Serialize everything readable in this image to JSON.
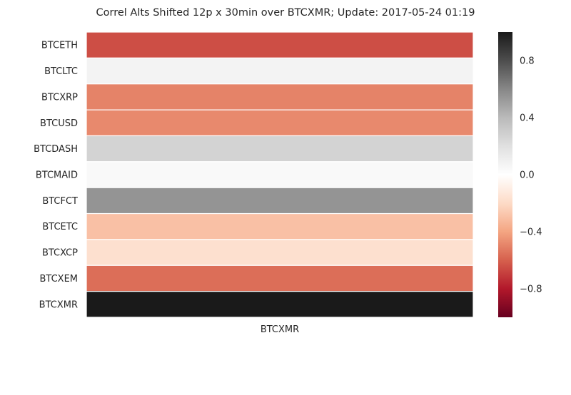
{
  "chart_data": {
    "type": "heatmap",
    "title": "Correl Alts Shifted 12p x 30min over BTCXMR; Update: 2017-05-24 01:19",
    "x_categories": [
      "BTCXMR"
    ],
    "y_categories": [
      "BTCETH",
      "BTCLTC",
      "BTCXRP",
      "BTCUSD",
      "BTCDASH",
      "BTCMAID",
      "BTCFCT",
      "BTCETC",
      "BTCXCP",
      "BTCXEM",
      "BTCXMR"
    ],
    "values": [
      -0.65,
      0.08,
      -0.5,
      -0.48,
      0.27,
      0.04,
      0.55,
      -0.3,
      -0.17,
      -0.56,
      1.0
    ],
    "colorbar": {
      "vmin": -1.0,
      "vmax": 1.0,
      "ticks": [
        0.8,
        0.4,
        0.0,
        -0.4,
        -0.8
      ],
      "tick_labels": [
        "0.8",
        "0.4",
        "0.0",
        "−0.4",
        "−0.8"
      ],
      "colormap": "RdGy_r",
      "stops": [
        "#67001f",
        "#b2182b",
        "#d6604d",
        "#f4a582",
        "#fddbc7",
        "#ffffff",
        "#e0e0e0",
        "#bababa",
        "#878787",
        "#4d4d4d",
        "#1a1a1a"
      ]
    }
  }
}
